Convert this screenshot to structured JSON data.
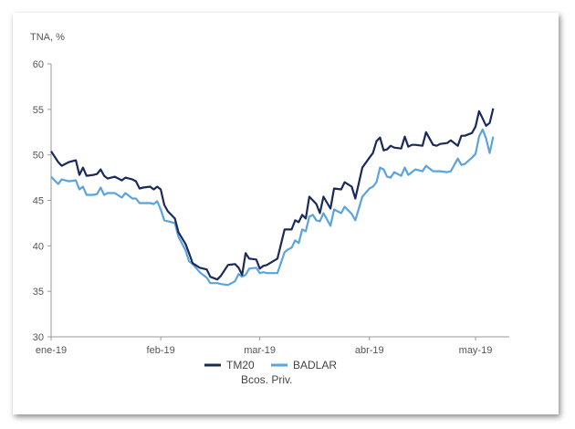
{
  "chart_data": {
    "type": "line",
    "title": "",
    "ylabel": "TNA, %",
    "xlabel": "",
    "ylim": [
      30,
      60
    ],
    "yticks": [
      30,
      35,
      40,
      45,
      50,
      55,
      60
    ],
    "xlim": [
      0,
      128
    ],
    "xticks": [
      {
        "label": "ene-19",
        "x": 0
      },
      {
        "label": "feb-19",
        "x": 31
      },
      {
        "label": "mar-19",
        "x": 59
      },
      {
        "label": "abr-19",
        "x": 90
      },
      {
        "label": "may-19",
        "x": 120
      }
    ],
    "grid": false,
    "legend": {
      "placement": "bottom",
      "subtitle": "Bcos. Priv."
    },
    "series": [
      {
        "name": "TM20",
        "color": "#1b2a5a",
        "x": [
          0,
          2,
          3,
          5,
          7,
          8,
          9,
          10,
          12,
          13,
          14,
          15,
          16,
          18,
          20,
          21,
          23,
          24,
          25,
          26,
          28,
          29,
          30,
          31,
          32,
          33,
          35,
          36,
          38,
          39,
          40,
          42,
          44,
          45,
          47,
          48,
          50,
          52,
          53,
          54,
          55,
          56,
          58,
          59,
          60,
          61,
          64,
          66,
          67,
          68,
          69,
          70,
          71,
          72,
          73,
          74,
          75,
          76,
          77,
          79,
          80,
          82,
          83,
          85,
          86,
          88,
          90,
          91,
          92,
          93,
          94,
          95,
          96,
          97,
          99,
          100,
          101,
          102,
          103,
          105,
          106,
          108,
          109,
          110,
          112,
          113,
          115,
          116,
          117,
          119,
          120,
          121,
          122,
          123,
          124,
          125
        ],
        "y": [
          50.4,
          49.2,
          48.8,
          49.2,
          49.4,
          47.8,
          48.6,
          47.7,
          47.8,
          47.9,
          48.4,
          47.7,
          47.4,
          47.6,
          47.2,
          47.5,
          47.3,
          47.1,
          46.3,
          46.4,
          46.5,
          46.2,
          46.5,
          46.2,
          44.5,
          43.8,
          43.0,
          41.5,
          40.2,
          39.2,
          38.1,
          37.6,
          37.4,
          36.6,
          36.3,
          36.7,
          37.9,
          38.0,
          37.6,
          36.8,
          39.2,
          38.6,
          38.5,
          37.5,
          37.8,
          37.9,
          38.6,
          41.8,
          41.8,
          41.8,
          42.8,
          42.6,
          43.4,
          43.0,
          45.4,
          45.0,
          44.6,
          43.6,
          45.4,
          44.1,
          46.3,
          46.2,
          47.0,
          46.5,
          45.2,
          48.6,
          49.7,
          50.2,
          51.5,
          51.9,
          50.5,
          50.6,
          51.0,
          50.8,
          50.7,
          52.0,
          50.9,
          51.1,
          51.1,
          51.0,
          52.5,
          51.1,
          51.0,
          51.2,
          51.3,
          51.6,
          51.0,
          52.1,
          52.1,
          52.4,
          53.1,
          54.8,
          54.0,
          53.2,
          53.5,
          55.1
        ]
      },
      {
        "name": "BADLAR",
        "color": "#5ba3dd",
        "x": [
          0,
          2,
          3,
          5,
          7,
          8,
          9,
          10,
          12,
          13,
          14,
          15,
          16,
          18,
          20,
          21,
          23,
          24,
          25,
          26,
          28,
          29,
          30,
          31,
          32,
          33,
          35,
          36,
          38,
          39,
          40,
          42,
          44,
          45,
          47,
          48,
          50,
          52,
          53,
          54,
          55,
          56,
          58,
          59,
          60,
          61,
          64,
          66,
          67,
          68,
          69,
          70,
          71,
          72,
          73,
          74,
          75,
          76,
          77,
          79,
          80,
          82,
          83,
          85,
          86,
          88,
          90,
          91,
          92,
          93,
          94,
          95,
          96,
          97,
          99,
          100,
          101,
          102,
          103,
          105,
          106,
          108,
          109,
          110,
          112,
          113,
          115,
          116,
          117,
          119,
          120,
          121,
          122,
          123,
          124,
          125
        ],
        "y": [
          47.6,
          46.8,
          47.3,
          47.1,
          47.2,
          46.2,
          46.5,
          45.6,
          45.6,
          45.7,
          46.4,
          45.6,
          45.8,
          45.8,
          45.3,
          45.8,
          45.2,
          45.2,
          44.7,
          44.7,
          44.7,
          44.6,
          44.9,
          44.0,
          42.8,
          42.7,
          42.5,
          41.0,
          39.5,
          38.3,
          38.0,
          37.1,
          36.5,
          35.9,
          35.9,
          35.8,
          35.7,
          36.1,
          36.9,
          36.6,
          36.8,
          37.5,
          37.6,
          37.0,
          37.1,
          37.0,
          37.0,
          39.3,
          39.6,
          39.8,
          40.6,
          40.3,
          41.8,
          41.6,
          43.2,
          43.4,
          42.8,
          42.7,
          43.6,
          42.2,
          44.0,
          43.6,
          44.3,
          43.5,
          42.8,
          45.4,
          46.3,
          46.5,
          47.0,
          48.6,
          48.4,
          47.6,
          47.5,
          48.1,
          47.7,
          48.6,
          47.8,
          48.1,
          48.4,
          48.2,
          48.8,
          48.2,
          48.2,
          48.2,
          48.1,
          48.2,
          49.6,
          48.9,
          49.0,
          49.7,
          50.1,
          52.0,
          52.8,
          51.8,
          50.2,
          52.0
        ]
      }
    ]
  }
}
